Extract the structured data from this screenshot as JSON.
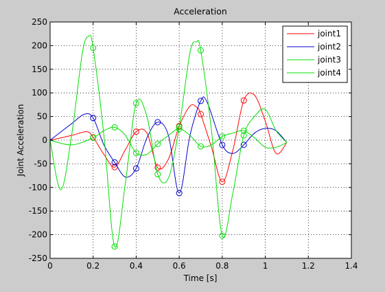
{
  "chart_data": {
    "type": "line",
    "title": "Acceleration",
    "xlabel": "Time [s]",
    "ylabel": "Joint Acceleration",
    "xlim": [
      0,
      1.4
    ],
    "ylim": [
      -250,
      250
    ],
    "xticks": [
      0,
      0.2,
      0.4,
      0.6,
      0.8,
      1,
      1.2,
      1.4
    ],
    "xtick_labels": [
      "0",
      "0.2",
      "0.4",
      "0.6",
      "0.8",
      "1",
      "1.2",
      "1.4"
    ],
    "yticks": [
      -250,
      -200,
      -150,
      -100,
      -50,
      0,
      50,
      100,
      150,
      200,
      250
    ],
    "ytick_labels": [
      "-250",
      "-200",
      "-150",
      "-100",
      "-50",
      "0",
      "50",
      "100",
      "150",
      "200",
      "250"
    ],
    "grid": true,
    "legend_position": "top-right",
    "series": [
      {
        "name": "joint1",
        "color": "#ff0000",
        "x": [
          0,
          0.1,
          0.17,
          0.2,
          0.25,
          0.3,
          0.35,
          0.4,
          0.45,
          0.5,
          0.55,
          0.6,
          0.65,
          0.68,
          0.7,
          0.75,
          0.8,
          0.85,
          0.9,
          0.95,
          1.0,
          1.05,
          1.1
        ],
        "y": [
          0,
          10,
          18,
          6,
          -30,
          -57,
          -20,
          18,
          15,
          -58,
          -40,
          30,
          72,
          70,
          55,
          -15,
          -88,
          -20,
          84,
          95,
          40,
          -28,
          -5
        ],
        "markers_x": [
          0.2,
          0.3,
          0.4,
          0.5,
          0.6,
          0.7,
          0.8,
          0.9
        ],
        "markers_y": [
          6,
          -57,
          18,
          -58,
          30,
          55,
          -88,
          84
        ]
      },
      {
        "name": "joint2",
        "color": "#0000cc",
        "x": [
          0,
          0.1,
          0.16,
          0.2,
          0.25,
          0.3,
          0.35,
          0.4,
          0.45,
          0.5,
          0.55,
          0.6,
          0.65,
          0.7,
          0.73,
          0.8,
          0.85,
          0.9,
          0.95,
          1.0,
          1.05,
          1.1
        ],
        "y": [
          0,
          35,
          55,
          47,
          -10,
          -47,
          -78,
          -60,
          5,
          38,
          10,
          -112,
          10,
          83,
          80,
          -10,
          -28,
          -10,
          15,
          25,
          20,
          -5
        ],
        "markers_x": [
          0.2,
          0.3,
          0.4,
          0.5,
          0.6,
          0.7,
          0.8,
          0.9
        ],
        "markers_y": [
          47,
          -47,
          -60,
          38,
          -112,
          83,
          -10,
          -10
        ]
      },
      {
        "name": "joint3",
        "color": "#00dd00",
        "x": [
          0,
          0.05,
          0.1,
          0.15,
          0.18,
          0.2,
          0.25,
          0.3,
          0.35,
          0.4,
          0.45,
          0.5,
          0.55,
          0.6,
          0.65,
          0.68,
          0.7,
          0.75,
          0.8,
          0.85,
          0.9,
          0.95,
          1.0,
          1.05,
          1.1
        ],
        "y": [
          0,
          -105,
          10,
          185,
          220,
          195,
          10,
          -225,
          -90,
          78,
          50,
          -72,
          -80,
          28,
          185,
          208,
          190,
          20,
          -202,
          -110,
          10,
          50,
          65,
          20,
          -5
        ],
        "markers_x": [
          0.2,
          0.3,
          0.4,
          0.5,
          0.6,
          0.7,
          0.8,
          0.9
        ],
        "markers_y": [
          195,
          -225,
          78,
          -72,
          28,
          190,
          -202,
          10
        ]
      },
      {
        "name": "joint4",
        "color": "#00dd00",
        "x": [
          0,
          0.1,
          0.2,
          0.25,
          0.3,
          0.35,
          0.4,
          0.45,
          0.5,
          0.55,
          0.6,
          0.65,
          0.7,
          0.75,
          0.8,
          0.85,
          0.9,
          0.95,
          1.0,
          1.05,
          1.1
        ],
        "y": [
          0,
          -10,
          5,
          20,
          27,
          10,
          -27,
          -30,
          -8,
          10,
          24,
          10,
          -13,
          -10,
          8,
          15,
          20,
          5,
          -15,
          -15,
          -5
        ],
        "markers_x": [
          0.2,
          0.3,
          0.4,
          0.5,
          0.6,
          0.7,
          0.8,
          0.9
        ],
        "markers_y": [
          5,
          27,
          -27,
          -8,
          24,
          -13,
          8,
          20
        ]
      }
    ]
  }
}
